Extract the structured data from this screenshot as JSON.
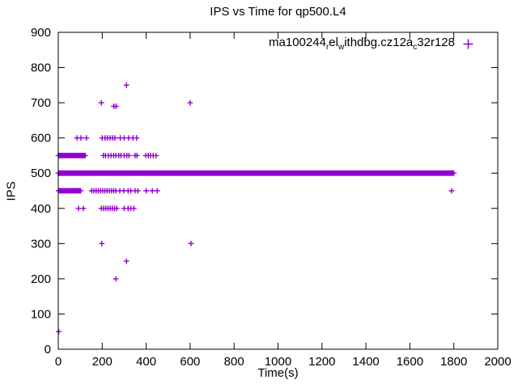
{
  "chart_data": {
    "type": "scatter",
    "title": "IPS vs Time for qp500.L4",
    "xlabel": "Time(s)",
    "ylabel": "IPS",
    "xlim": [
      0,
      2000
    ],
    "ylim": [
      0,
      900
    ],
    "xticks": [
      0,
      200,
      400,
      600,
      800,
      1000,
      1200,
      1400,
      1600,
      1800,
      2000
    ],
    "yticks": [
      0,
      100,
      200,
      300,
      400,
      500,
      600,
      700,
      800,
      900
    ],
    "grid": false,
    "marker": "plus",
    "marker_color": "#9400D3",
    "legend": {
      "label": "ma100244_rel_withdbg.cz12a_c32r128",
      "position": "top-right",
      "segments": [
        {
          "text": "ma100244",
          "sub": false
        },
        {
          "text": "r",
          "sub": true
        },
        {
          "text": "el",
          "sub": false
        },
        {
          "text": "w",
          "sub": true
        },
        {
          "text": "ithdbg.cz12a",
          "sub": false
        },
        {
          "text": "c",
          "sub": true
        },
        {
          "text": "32r128",
          "sub": false
        }
      ]
    },
    "series": [
      {
        "name": "ma100244_rel_withdbg.cz12a_c32r128",
        "bands": [
          {
            "y": 500,
            "x_start": 0,
            "x_end": 1800,
            "step": 4
          },
          {
            "y": 550,
            "x_start": 0,
            "x_end": 125,
            "step": 3
          },
          {
            "y": 450,
            "x_start": 2,
            "x_end": 105,
            "step": 4
          }
        ],
        "points": [
          [
            2,
            50
          ],
          [
            205,
            550
          ],
          [
            215,
            550
          ],
          [
            228,
            550
          ],
          [
            240,
            550
          ],
          [
            252,
            550
          ],
          [
            262,
            550
          ],
          [
            275,
            550
          ],
          [
            285,
            550
          ],
          [
            300,
            550
          ],
          [
            312,
            550
          ],
          [
            322,
            550
          ],
          [
            350,
            550
          ],
          [
            358,
            550
          ],
          [
            398,
            550
          ],
          [
            410,
            550
          ],
          [
            420,
            550
          ],
          [
            432,
            550
          ],
          [
            445,
            550
          ],
          [
            85,
            600
          ],
          [
            103,
            600
          ],
          [
            128,
            600
          ],
          [
            200,
            600
          ],
          [
            213,
            600
          ],
          [
            224,
            600
          ],
          [
            236,
            600
          ],
          [
            247,
            600
          ],
          [
            258,
            600
          ],
          [
            282,
            600
          ],
          [
            300,
            600
          ],
          [
            320,
            600
          ],
          [
            340,
            600
          ],
          [
            356,
            600
          ],
          [
            196,
            700
          ],
          [
            253,
            690
          ],
          [
            263,
            690
          ],
          [
            600,
            700
          ],
          [
            310,
            750
          ],
          [
            152,
            450
          ],
          [
            162,
            450
          ],
          [
            172,
            450
          ],
          [
            182,
            450
          ],
          [
            192,
            450
          ],
          [
            202,
            450
          ],
          [
            212,
            450
          ],
          [
            222,
            450
          ],
          [
            232,
            450
          ],
          [
            242,
            450
          ],
          [
            252,
            450
          ],
          [
            262,
            450
          ],
          [
            280,
            450
          ],
          [
            298,
            450
          ],
          [
            318,
            450
          ],
          [
            330,
            450
          ],
          [
            350,
            450
          ],
          [
            362,
            450
          ],
          [
            400,
            450
          ],
          [
            428,
            450
          ],
          [
            450,
            450
          ],
          [
            1790,
            450
          ],
          [
            92,
            400
          ],
          [
            114,
            400
          ],
          [
            196,
            400
          ],
          [
            206,
            400
          ],
          [
            216,
            400
          ],
          [
            226,
            400
          ],
          [
            236,
            400
          ],
          [
            246,
            400
          ],
          [
            256,
            400
          ],
          [
            266,
            400
          ],
          [
            300,
            400
          ],
          [
            318,
            400
          ],
          [
            330,
            400
          ],
          [
            344,
            400
          ],
          [
            198,
            300
          ],
          [
            604,
            300
          ],
          [
            310,
            250
          ],
          [
            262,
            200
          ]
        ]
      }
    ]
  }
}
